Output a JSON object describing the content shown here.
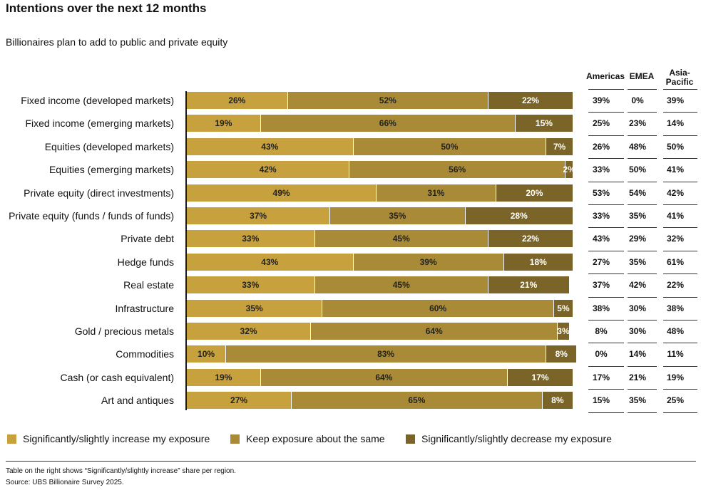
{
  "title": "Intentions over the next 12 months",
  "subtitle": "Billionaires plan to add to public and private equity",
  "chart_data": {
    "type": "bar",
    "orientation": "horizontal",
    "stacked": true,
    "categories": [
      "Fixed income (developed markets)",
      "Fixed income (emerging markets)",
      "Equities (developed markets)",
      "Equities (emerging markets)",
      "Private equity (direct investments)",
      "Private equity (funds / funds of funds)",
      "Private debt",
      "Hedge funds",
      "Real estate",
      "Infrastructure",
      "Gold / precious metals",
      "Commodities",
      "Cash (or cash equivalent)",
      "Art and antiques"
    ],
    "series": [
      {
        "name": "Significantly/slightly increase my exposure",
        "color": "#c7a13e",
        "values": [
          26,
          19,
          43,
          42,
          49,
          37,
          33,
          43,
          33,
          35,
          32,
          10,
          19,
          27
        ]
      },
      {
        "name": "Keep exposure about the same",
        "color": "#a98b37",
        "values": [
          52,
          66,
          50,
          56,
          31,
          35,
          45,
          39,
          45,
          60,
          64,
          83,
          64,
          65
        ]
      },
      {
        "name": "Significantly/slightly decrease my exposure",
        "color": "#7b6427",
        "values": [
          22,
          15,
          7,
          2,
          20,
          28,
          22,
          18,
          21,
          5,
          3,
          8,
          17,
          8
        ]
      }
    ],
    "value_suffix": "%",
    "xlim": [
      0,
      100
    ],
    "legend_position": "bottom",
    "table": {
      "columns": [
        "Americas",
        "EMEA",
        "Asia-Pacific"
      ],
      "rows": [
        [
          "39%",
          "0%",
          "39%"
        ],
        [
          "25%",
          "23%",
          "14%"
        ],
        [
          "26%",
          "48%",
          "50%"
        ],
        [
          "33%",
          "50%",
          "41%"
        ],
        [
          "53%",
          "54%",
          "42%"
        ],
        [
          "33%",
          "35%",
          "41%"
        ],
        [
          "43%",
          "29%",
          "32%"
        ],
        [
          "27%",
          "35%",
          "61%"
        ],
        [
          "37%",
          "42%",
          "22%"
        ],
        [
          "38%",
          "30%",
          "38%"
        ],
        [
          "8%",
          "30%",
          "48%"
        ],
        [
          "0%",
          "14%",
          "11%"
        ],
        [
          "17%",
          "21%",
          "19%"
        ],
        [
          "15%",
          "35%",
          "25%"
        ]
      ]
    }
  },
  "table_headers": {
    "americas": "Americas",
    "emea": "EMEA",
    "apac_line1": "Asia-",
    "apac_line2": "Pacific"
  },
  "legend": {
    "increase": "Significantly/slightly increase my exposure",
    "same": "Keep exposure about the same",
    "decrease": "Significantly/slightly decrease my exposure"
  },
  "notes": {
    "table_note": "Table on the right shows “Significantly/slightly increase” share per region.",
    "source": "Source: UBS Billionaire Survey 2025."
  }
}
